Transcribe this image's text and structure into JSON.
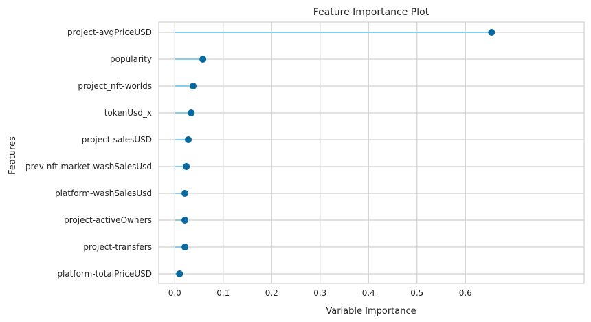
{
  "chart_data": {
    "type": "lollipop",
    "title": "Feature Importance Plot",
    "xlabel": "Variable Importance",
    "ylabel": "Features",
    "xlim": [
      -0.033,
      0.845
    ],
    "xticks": [
      0.0,
      0.1,
      0.2,
      0.3,
      0.4,
      0.5,
      0.6
    ],
    "xtick_labels": [
      "0.0",
      "0.1",
      "0.2",
      "0.3",
      "0.4",
      "0.5",
      "0.6"
    ],
    "grid": true,
    "categories": [
      "project-avgPriceUSD",
      "popularity",
      "project_nft-worlds",
      "tokenUsd_x",
      "project-salesUSD",
      "prev-nft-market-washSalesUsd",
      "platform-washSalesUsd",
      "project-activeOwners",
      "project-transfers",
      "platform-totalPriceUSD"
    ],
    "values": [
      0.654,
      0.058,
      0.038,
      0.034,
      0.028,
      0.024,
      0.021,
      0.021,
      0.021,
      0.01
    ],
    "colors": {
      "stem": "#87CEEB",
      "marker": "#0868a0",
      "grid": "#d0d0d0",
      "frame": "#d0d0d0"
    }
  }
}
